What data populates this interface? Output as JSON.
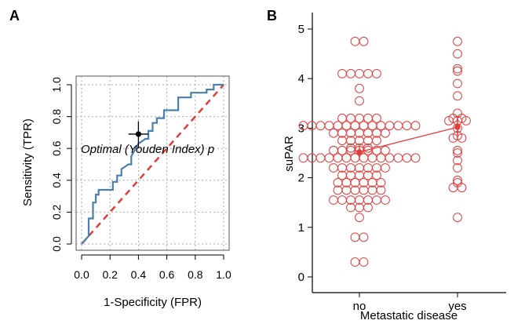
{
  "panels": {
    "a_label": "A",
    "b_label": "B"
  },
  "colors": {
    "roc_line": "#4a7fae",
    "diagonal": "#e23c3c",
    "points": "#e23c3c",
    "grid": "#aaaaaa",
    "axis": "#000000"
  },
  "chart_data": [
    {
      "type": "line",
      "panel": "A",
      "title": "",
      "xlabel": "1-Specificity (FPR)",
      "ylabel": "Sensitivity (TPR)",
      "xlim": [
        0,
        1
      ],
      "ylim": [
        0,
        1
      ],
      "xticks": [
        "0.0",
        "0.2",
        "0.4",
        "0.6",
        "0.8",
        "1.0"
      ],
      "yticks": [
        "0.0",
        "0.2",
        "0.4",
        "0.6",
        "0.8",
        "1.0"
      ],
      "grid": true,
      "series": [
        {
          "kind": "roc",
          "points": [
            [
              0,
              0
            ],
            [
              0.03,
              0.03
            ],
            [
              0.05,
              0.05
            ],
            [
              0.05,
              0.16
            ],
            [
              0.08,
              0.16
            ],
            [
              0.08,
              0.26
            ],
            [
              0.1,
              0.26
            ],
            [
              0.1,
              0.31
            ],
            [
              0.12,
              0.31
            ],
            [
              0.12,
              0.34
            ],
            [
              0.22,
              0.34
            ],
            [
              0.22,
              0.39
            ],
            [
              0.25,
              0.39
            ],
            [
              0.25,
              0.43
            ],
            [
              0.28,
              0.43
            ],
            [
              0.28,
              0.47
            ],
            [
              0.33,
              0.5
            ],
            [
              0.35,
              0.5
            ],
            [
              0.35,
              0.55
            ],
            [
              0.38,
              0.6
            ],
            [
              0.4,
              0.63
            ],
            [
              0.45,
              0.66
            ],
            [
              0.47,
              0.66
            ],
            [
              0.47,
              0.71
            ],
            [
              0.5,
              0.71
            ],
            [
              0.5,
              0.76
            ],
            [
              0.53,
              0.76
            ],
            [
              0.53,
              0.79
            ],
            [
              0.58,
              0.79
            ],
            [
              0.58,
              0.84
            ],
            [
              0.68,
              0.84
            ],
            [
              0.68,
              0.92
            ],
            [
              0.77,
              0.92
            ],
            [
              0.77,
              0.95
            ],
            [
              0.88,
              0.95
            ],
            [
              0.88,
              0.97
            ],
            [
              0.93,
              0.97
            ],
            [
              0.93,
              1.0
            ],
            [
              1.0,
              1.0
            ]
          ]
        },
        {
          "kind": "reference",
          "points": [
            [
              0,
              0
            ],
            [
              1,
              1
            ]
          ]
        }
      ],
      "optimal_point": {
        "x": 0.4,
        "y": 0.69,
        "x_err": [
          0.33,
          0.47
        ],
        "y_err": [
          0.6,
          0.77
        ]
      },
      "annotation": "Optimal (Youden Index) p"
    },
    {
      "type": "scatter",
      "panel": "B",
      "title": "",
      "xlabel": "Metastatic disease",
      "ylabel": "suPAR",
      "categories": [
        "no",
        "yes"
      ],
      "ylim": [
        0,
        5
      ],
      "yticks": [
        "0",
        "1",
        "2",
        "3",
        "4",
        "5"
      ],
      "grid": false,
      "series": [
        {
          "category": "no",
          "values": [
            4.75,
            4.75,
            4.1,
            4.1,
            4.1,
            4.1,
            4.1,
            3.8,
            3.55,
            3.2,
            3.2,
            3.2,
            3.2,
            3.2,
            3.05,
            3.05,
            3.05,
            3.05,
            3.05,
            3.05,
            3.05,
            3.05,
            3.05,
            3.05,
            3.05,
            3.05,
            3.05,
            3.05,
            2.9,
            2.9,
            2.9,
            2.9,
            2.9,
            2.9,
            2.9,
            2.75,
            2.75,
            2.75,
            2.75,
            2.75,
            2.6,
            2.6,
            2.6,
            2.55,
            2.55,
            2.55,
            2.55,
            2.55,
            2.55,
            2.55,
            2.4,
            2.4,
            2.4,
            2.4,
            2.4,
            2.4,
            2.4,
            2.4,
            2.4,
            2.4,
            2.4,
            2.4,
            2.4,
            2.4,
            2.2,
            2.2,
            2.2,
            2.2,
            2.2,
            2.2,
            2.2,
            2.05,
            2.05,
            2.05,
            2.05,
            2.05,
            1.9,
            1.9,
            1.9,
            1.9,
            1.9,
            1.9,
            1.75,
            1.75,
            1.75,
            1.75,
            1.75,
            1.75,
            1.55,
            1.55,
            1.55,
            1.55,
            1.55,
            1.55,
            1.55,
            1.4,
            1.4,
            1.4,
            1.2,
            0.8,
            0.8,
            0.3,
            0.3
          ]
        },
        {
          "category": "yes",
          "values": [
            4.75,
            4.5,
            4.2,
            4.15,
            3.9,
            3.65,
            3.3,
            3.2,
            3.2,
            3.15,
            3.15,
            3.15,
            3.0,
            2.85,
            2.8,
            2.8,
            2.55,
            2.5,
            2.35,
            2.2,
            1.95,
            1.9,
            1.8,
            1.8,
            1.2
          ]
        }
      ],
      "means": [
        2.52,
        3.02
      ],
      "mean_err": [
        [
          2.4,
          2.65
        ],
        [
          2.85,
          3.2
        ]
      ]
    }
  ]
}
